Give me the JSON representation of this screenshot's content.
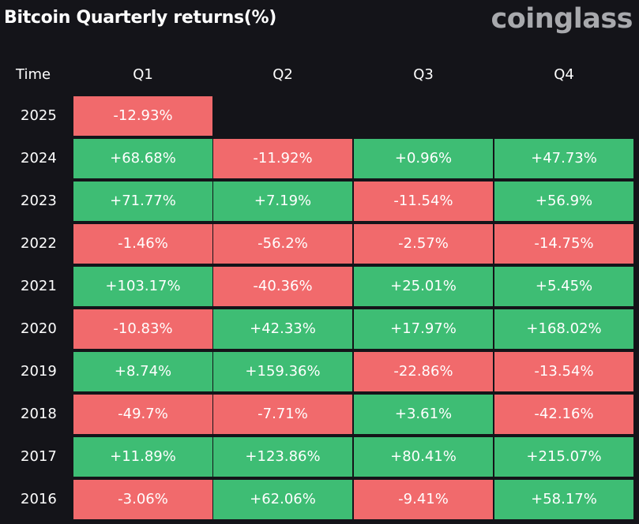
{
  "title": "Bitcoin Quarterly returns(%)",
  "brand": "coinglass",
  "colors": {
    "background": "#141419",
    "positive": "#3ebd74",
    "negative": "#f16a6c"
  },
  "chart_data": {
    "type": "table",
    "title": "Bitcoin Quarterly returns(%)",
    "time_header": "Time",
    "columns": [
      "Q1",
      "Q2",
      "Q3",
      "Q4"
    ],
    "rows": [
      {
        "year": "2025",
        "values": [
          "-12.93%",
          null,
          null,
          null
        ]
      },
      {
        "year": "2024",
        "values": [
          "+68.68%",
          "-11.92%",
          "+0.96%",
          "+47.73%"
        ]
      },
      {
        "year": "2023",
        "values": [
          "+71.77%",
          "+7.19%",
          "-11.54%",
          "+56.9%"
        ]
      },
      {
        "year": "2022",
        "values": [
          "-1.46%",
          "-56.2%",
          "-2.57%",
          "-14.75%"
        ]
      },
      {
        "year": "2021",
        "values": [
          "+103.17%",
          "-40.36%",
          "+25.01%",
          "+5.45%"
        ]
      },
      {
        "year": "2020",
        "values": [
          "-10.83%",
          "+42.33%",
          "+17.97%",
          "+168.02%"
        ]
      },
      {
        "year": "2019",
        "values": [
          "+8.74%",
          "+159.36%",
          "-22.86%",
          "-13.54%"
        ]
      },
      {
        "year": "2018",
        "values": [
          "-49.7%",
          "-7.71%",
          "+3.61%",
          "-42.16%"
        ]
      },
      {
        "year": "2017",
        "values": [
          "+11.89%",
          "+123.86%",
          "+80.41%",
          "+215.07%"
        ]
      },
      {
        "year": "2016",
        "values": [
          "-3.06%",
          "+62.06%",
          "-9.41%",
          "+58.17%"
        ]
      }
    ]
  }
}
